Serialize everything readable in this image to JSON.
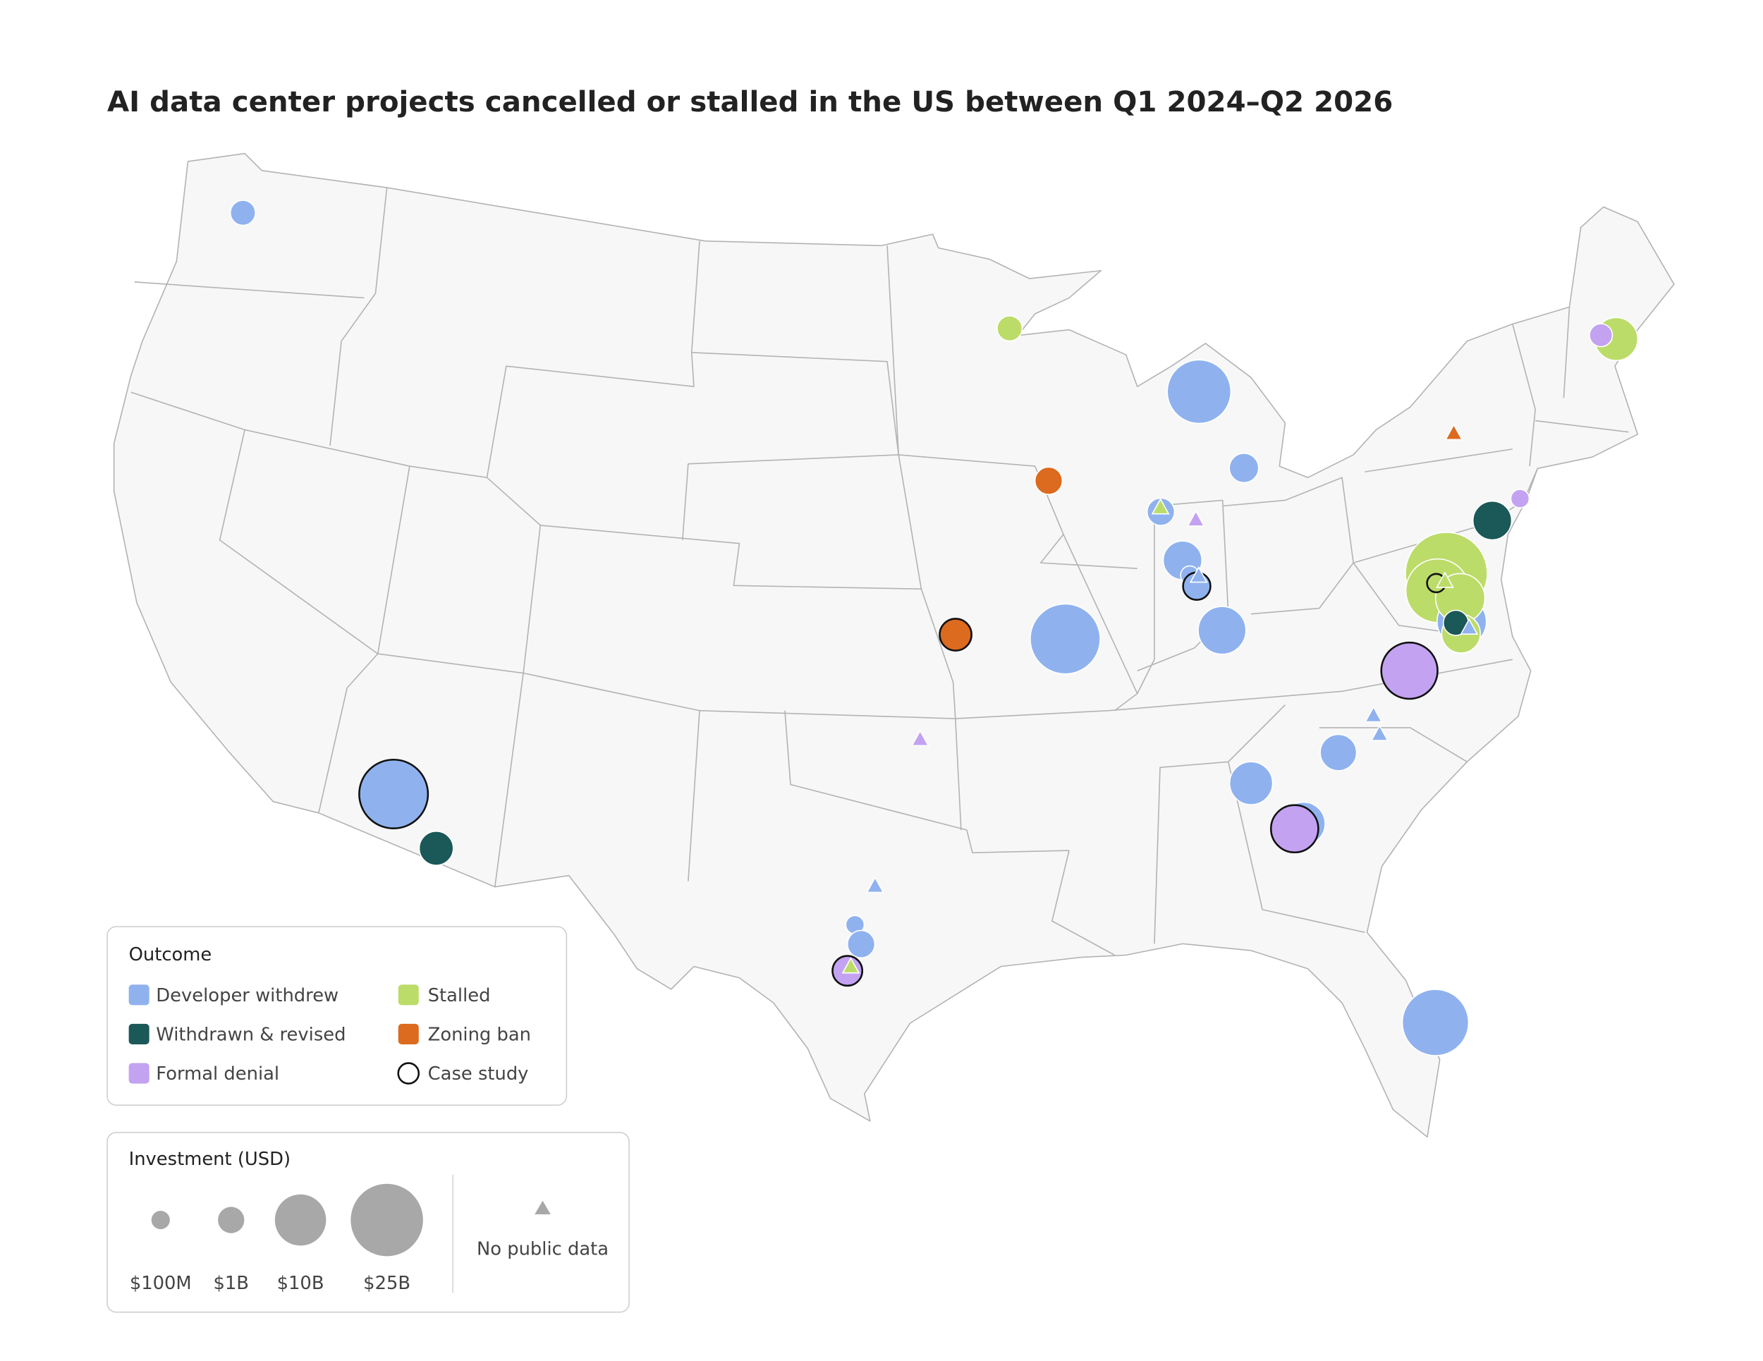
{
  "chart_data": {
    "type": "bubble_map",
    "title": "AI data center projects cancelled or stalled in the US between Q1 2024–Q2 2026",
    "outcome_legend": {
      "title": "Outcome",
      "items": [
        {
          "name": "Developer withdrew",
          "color": "#8fb2ef"
        },
        {
          "name": "Withdrawn & revised",
          "color": "#1b5858"
        },
        {
          "name": "Formal denial",
          "color": "#c3a2f2"
        },
        {
          "name": "Stalled",
          "color": "#bcdc69"
        },
        {
          "name": "Zoning ban",
          "color": "#dc6a1f"
        }
      ],
      "case_study": "Case study"
    },
    "size_legend": {
      "title": "Investment (USD)",
      "items": [
        {
          "value": 100000000,
          "label": "$100M"
        },
        {
          "value": 1000000000,
          "label": "$1B"
        },
        {
          "value": 10000000000,
          "label": "$10B"
        },
        {
          "value": 25000000000,
          "label": "$25B"
        }
      ],
      "no_data": "No public data",
      "color": "#a8a8a8"
    },
    "points": [
      {
        "lon": -122.3,
        "lat": 47.6,
        "outcome": "Developer withdrew",
        "investment": 800000000,
        "case_study": false
      },
      {
        "lon": -92.6,
        "lat": 47.0,
        "outcome": "Stalled",
        "investment": 800000000,
        "case_study": false
      },
      {
        "lon": -85.7,
        "lat": 45.0,
        "outcome": "Developer withdrew",
        "investment": 18000000000,
        "case_study": false
      },
      {
        "lon": -84.4,
        "lat": 42.9,
        "outcome": "Developer withdrew",
        "investment": 1600000000,
        "case_study": false
      },
      {
        "lon": -91.4,
        "lat": 43.0,
        "outcome": "Zoning ban",
        "investment": 1200000000,
        "case_study": false
      },
      {
        "lon": -87.5,
        "lat": 42.0,
        "outcome": "Developer withdrew",
        "investment": 1200000000,
        "case_study": false
      },
      {
        "lon": -86.9,
        "lat": 40.7,
        "outcome": "Developer withdrew",
        "investment": 4300000000,
        "case_study": false
      },
      {
        "lon": -86.7,
        "lat": 40.3,
        "outcome": "Developer withdrew",
        "investment": 100000000,
        "case_study": false
      },
      {
        "lon": -86.5,
        "lat": 40.0,
        "outcome": "Developer withdrew",
        "investment": 1200000000,
        "case_study": true
      },
      {
        "lon": -85.8,
        "lat": 38.8,
        "outcome": "Developer withdrew",
        "investment": 8200000000,
        "case_study": false
      },
      {
        "lon": -91.1,
        "lat": 38.9,
        "outcome": "Developer withdrew",
        "investment": 23000000000,
        "case_study": false
      },
      {
        "lon": -94.8,
        "lat": 39.1,
        "outcome": "Zoning ban",
        "investment": 2200000000,
        "case_study": true
      },
      {
        "lon": -112.7,
        "lat": 33.8,
        "outcome": "Developer withdrew",
        "investment": 22000000000,
        "case_study": true
      },
      {
        "lon": -111.1,
        "lat": 32.6,
        "outcome": "Withdrawn & revised",
        "investment": 2800000000,
        "case_study": false
      },
      {
        "lon": -98.0,
        "lat": 31.6,
        "outcome": "Developer withdrew",
        "investment": 100000000,
        "case_study": false
      },
      {
        "lon": -97.8,
        "lat": 31.1,
        "outcome": "Developer withdrew",
        "investment": 1200000000,
        "case_study": false
      },
      {
        "lon": -98.2,
        "lat": 30.4,
        "outcome": "Formal denial",
        "investment": 1700000000,
        "case_study": true
      },
      {
        "lon": -85.4,
        "lat": 34.8,
        "outcome": "Developer withdrew",
        "investment": 6000000000,
        "case_study": false
      },
      {
        "lon": -82.5,
        "lat": 35.3,
        "outcome": "Developer withdrew",
        "investment": 3500000000,
        "case_study": false
      },
      {
        "lon": -83.9,
        "lat": 33.6,
        "outcome": "Developer withdrew",
        "investment": 6000000000,
        "case_study": false
      },
      {
        "lon": -84.2,
        "lat": 33.5,
        "outcome": "Formal denial",
        "investment": 8000000000,
        "case_study": true
      },
      {
        "lon": -79.8,
        "lat": 37.1,
        "outcome": "Formal denial",
        "investment": 13000000000,
        "case_study": true
      },
      {
        "lon": -80.8,
        "lat": 28.0,
        "outcome": "Developer withdrew",
        "investment": 20000000000,
        "case_study": false
      },
      {
        "lon": -76.1,
        "lat": 40.5,
        "outcome": "Withdrawn & revised",
        "investment": 4300000000,
        "case_study": false
      },
      {
        "lon": -75.0,
        "lat": 40.9,
        "outcome": "Formal denial",
        "investment": 100000000,
        "case_study": false
      },
      {
        "lon": -70.3,
        "lat": 44.3,
        "outcome": "Stalled",
        "investment": 6000000000,
        "case_study": false
      },
      {
        "lon": -70.8,
        "lat": 44.5,
        "outcome": "Formal denial",
        "investment": 500000000,
        "case_study": false
      },
      {
        "lon": -78.0,
        "lat": 39.4,
        "outcome": "Stalled",
        "investment": 34000000000,
        "case_study": false
      },
      {
        "lon": -78.4,
        "lat": 39.0,
        "outcome": "Stalled",
        "investment": 18000000000,
        "case_study": false
      },
      {
        "lon": -77.8,
        "lat": 38.1,
        "outcome": "Developer withdrew",
        "investment": 9000000000,
        "case_study": false
      },
      {
        "lon": -77.7,
        "lat": 38.7,
        "outcome": "Stalled",
        "investment": 9000000000,
        "case_study": false
      },
      {
        "lon": -77.9,
        "lat": 37.8,
        "outcome": "Stalled",
        "investment": 4300000000,
        "case_study": false
      },
      {
        "lon": -78.0,
        "lat": 38.1,
        "outcome": "Withdrawn & revised",
        "investment": 800000000,
        "case_study": false
      },
      {
        "lon": -78.4,
        "lat": 39.2,
        "outcome": "Stalled",
        "investment": 100000000,
        "case_study": true
      },
      {
        "lon": -87.5,
        "lat": 42.1,
        "outcome": "Stalled",
        "investment": null,
        "case_study": false
      },
      {
        "lon": -86.3,
        "lat": 41.7,
        "outcome": "Formal denial",
        "investment": null,
        "case_study": false
      },
      {
        "lon": -86.4,
        "lat": 40.25,
        "outcome": "Developer withdrew",
        "investment": null,
        "case_study": false
      },
      {
        "lon": -96.0,
        "lat": 36.4,
        "outcome": "Formal denial",
        "investment": null,
        "case_study": false
      },
      {
        "lon": -97.4,
        "lat": 32.6,
        "outcome": "Developer withdrew",
        "investment": null,
        "case_study": false
      },
      {
        "lon": -98.1,
        "lat": 30.5,
        "outcome": "Stalled",
        "investment": null,
        "case_study": false
      },
      {
        "lon": -81.2,
        "lat": 36.1,
        "outcome": "Developer withdrew",
        "investment": null,
        "case_study": false
      },
      {
        "lon": -81.1,
        "lat": 35.6,
        "outcome": "Developer withdrew",
        "investment": null,
        "case_study": false
      },
      {
        "lon": -76.8,
        "lat": 42.9,
        "outcome": "Zoning ban",
        "investment": null,
        "case_study": false
      },
      {
        "lon": -78.1,
        "lat": 39.2,
        "outcome": "Stalled",
        "investment": null,
        "case_study": false
      },
      {
        "lon": -77.6,
        "lat": 37.9,
        "outcome": "Developer withdrew",
        "investment": null,
        "case_study": false
      }
    ]
  }
}
